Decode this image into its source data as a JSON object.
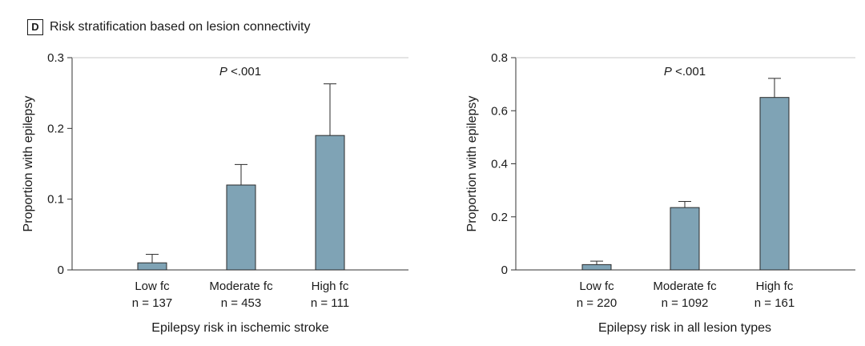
{
  "panel": {
    "label": "D",
    "title": "Risk stratification based on lesion connectivity"
  },
  "style": {
    "bar_color": "#7fa3b5",
    "bar_stroke": "#2a2a2a",
    "axis_color": "#333333",
    "text_color": "#1a1a1a"
  },
  "chart_data": [
    {
      "type": "bar",
      "title": "",
      "xlabel": "Epilepsy risk in ischemic stroke",
      "ylabel": "Proportion with epilepsy",
      "annotation": "P <.001",
      "categories": [
        "Low fc",
        "Moderate fc",
        "High fc"
      ],
      "sample_sizes": [
        "n = 137",
        "n = 453",
        "n = 111"
      ],
      "values": [
        0.01,
        0.12,
        0.19
      ],
      "error_upper": [
        0.022,
        0.149,
        0.263
      ],
      "ylim": [
        0,
        0.3
      ],
      "yticks": [
        0,
        0.1,
        0.2,
        0.3
      ],
      "ytick_labels": [
        "0",
        "0.1",
        "0.2",
        "0.3"
      ],
      "grid": false
    },
    {
      "type": "bar",
      "title": "",
      "xlabel": "Epilepsy risk in all lesion types",
      "ylabel": "Proportion with epilepsy",
      "annotation": "P <.001",
      "categories": [
        "Low fc",
        "Moderate fc",
        "High fc"
      ],
      "sample_sizes": [
        "n = 220",
        "n = 1092",
        "n = 161"
      ],
      "values": [
        0.02,
        0.235,
        0.65
      ],
      "error_upper": [
        0.033,
        0.258,
        0.722
      ],
      "ylim": [
        0,
        0.8
      ],
      "yticks": [
        0,
        0.2,
        0.4,
        0.6,
        0.8
      ],
      "ytick_labels": [
        "0",
        "0.2",
        "0.4",
        "0.6",
        "0.8"
      ],
      "grid": false
    }
  ]
}
